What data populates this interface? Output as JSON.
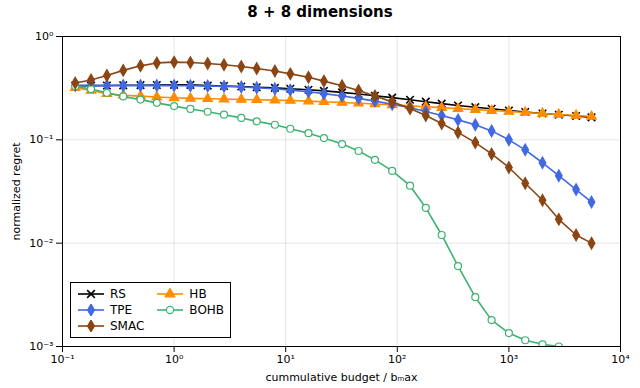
{
  "chart_data": {
    "type": "line",
    "title": "8 + 8 dimensions",
    "xlabel": "cummulative budget / bₘax",
    "ylabel": "normalized regret",
    "log": true,
    "grid": true,
    "legend": "lower left",
    "xlim": [
      0.1,
      10000
    ],
    "ylim": [
      0.001,
      1.0
    ],
    "xticks": [
      {
        "value": 0.1,
        "label": "10⁻¹"
      },
      {
        "value": 1,
        "label": "10⁰"
      },
      {
        "value": 10,
        "label": "10¹"
      },
      {
        "value": 100,
        "label": "10²"
      },
      {
        "value": 1000,
        "label": "10³"
      },
      {
        "value": 10000,
        "label": "10⁴"
      }
    ],
    "yticks": [
      {
        "value": 0.001,
        "label": "10⁻³"
      },
      {
        "value": 0.01,
        "label": "10⁻²"
      },
      {
        "value": 0.1,
        "label": "10⁻¹"
      },
      {
        "value": 1,
        "label": "10⁰"
      }
    ],
    "series": [
      {
        "name": "RS",
        "color": "#000000",
        "marker": "x",
        "x": [
          0.13,
          0.18,
          0.25,
          0.35,
          0.5,
          0.7,
          1.0,
          1.4,
          2.0,
          2.8,
          4.0,
          5.5,
          8.0,
          11,
          16,
          22,
          32,
          45,
          63,
          90,
          130,
          180,
          250,
          350,
          500,
          700,
          1000,
          1400,
          2000,
          2800,
          4000,
          5500
        ],
        "values": [
          0.335,
          0.335,
          0.336,
          0.337,
          0.338,
          0.339,
          0.34,
          0.34,
          0.335,
          0.332,
          0.328,
          0.323,
          0.318,
          0.312,
          0.305,
          0.298,
          0.288,
          0.278,
          0.267,
          0.256,
          0.244,
          0.234,
          0.224,
          0.215,
          0.207,
          0.2,
          0.192,
          0.186,
          0.18,
          0.175,
          0.17,
          0.165
        ]
      },
      {
        "name": "HB",
        "color": "#FF8C00",
        "marker": "triangle",
        "x": [
          0.13,
          0.18,
          0.25,
          0.35,
          0.5,
          0.7,
          1.0,
          1.4,
          2.0,
          2.8,
          4.0,
          5.5,
          8.0,
          11,
          16,
          22,
          32,
          45,
          63,
          90,
          130,
          180,
          250,
          350,
          500,
          700,
          1000,
          1400,
          2000,
          2800,
          4000,
          5500
        ],
        "values": [
          0.32,
          0.3,
          0.28,
          0.27,
          0.265,
          0.26,
          0.255,
          0.252,
          0.25,
          0.248,
          0.246,
          0.244,
          0.242,
          0.24,
          0.237,
          0.234,
          0.23,
          0.226,
          0.222,
          0.218,
          0.213,
          0.209,
          0.205,
          0.2,
          0.196,
          0.192,
          0.188,
          0.184,
          0.18,
          0.176,
          0.172,
          0.168
        ]
      },
      {
        "name": "TPE",
        "color": "#4169E1",
        "marker": "diamond",
        "x": [
          0.13,
          0.18,
          0.25,
          0.35,
          0.5,
          0.7,
          1.0,
          1.4,
          2.0,
          2.8,
          4.0,
          5.5,
          8.0,
          11,
          16,
          22,
          32,
          45,
          63,
          90,
          130,
          180,
          250,
          350,
          500,
          700,
          1000,
          1400,
          2000,
          2800,
          4000,
          5500
        ],
        "values": [
          0.335,
          0.335,
          0.335,
          0.335,
          0.335,
          0.335,
          0.335,
          0.334,
          0.332,
          0.329,
          0.325,
          0.319,
          0.312,
          0.303,
          0.292,
          0.28,
          0.266,
          0.252,
          0.237,
          0.221,
          0.204,
          0.188,
          0.172,
          0.156,
          0.14,
          0.122,
          0.1,
          0.08,
          0.06,
          0.045,
          0.033,
          0.025
        ]
      },
      {
        "name": "BOHB",
        "color": "#3CB371",
        "marker": "open circle",
        "x": [
          0.13,
          0.18,
          0.25,
          0.35,
          0.5,
          0.7,
          1.0,
          1.4,
          2.0,
          2.8,
          4.0,
          5.5,
          8.0,
          11,
          16,
          22,
          32,
          45,
          63,
          90,
          130,
          180,
          250,
          350,
          500,
          700,
          1000,
          1400,
          2000,
          2800
        ],
        "values": [
          0.33,
          0.31,
          0.285,
          0.263,
          0.245,
          0.228,
          0.212,
          0.199,
          0.187,
          0.175,
          0.163,
          0.151,
          0.14,
          0.128,
          0.116,
          0.104,
          0.091,
          0.078,
          0.064,
          0.05,
          0.036,
          0.022,
          0.012,
          0.006,
          0.003,
          0.0018,
          0.00135,
          0.00115,
          0.00105,
          0.001
        ]
      },
      {
        "name": "SMAC",
        "color": "#8B4513",
        "marker": "diamond",
        "x": [
          0.13,
          0.18,
          0.25,
          0.35,
          0.5,
          0.7,
          1.0,
          1.4,
          2.0,
          2.8,
          4.0,
          5.5,
          8.0,
          11,
          16,
          22,
          32,
          45,
          63,
          90,
          130,
          180,
          250,
          350,
          500,
          700,
          1000,
          1400,
          2000,
          2800,
          4000,
          5500
        ],
        "values": [
          0.355,
          0.38,
          0.42,
          0.47,
          0.52,
          0.555,
          0.565,
          0.56,
          0.548,
          0.532,
          0.513,
          0.49,
          0.464,
          0.435,
          0.403,
          0.37,
          0.334,
          0.3,
          0.266,
          0.233,
          0.201,
          0.172,
          0.144,
          0.118,
          0.094,
          0.073,
          0.054,
          0.038,
          0.026,
          0.017,
          0.012,
          0.01
        ]
      }
    ]
  }
}
